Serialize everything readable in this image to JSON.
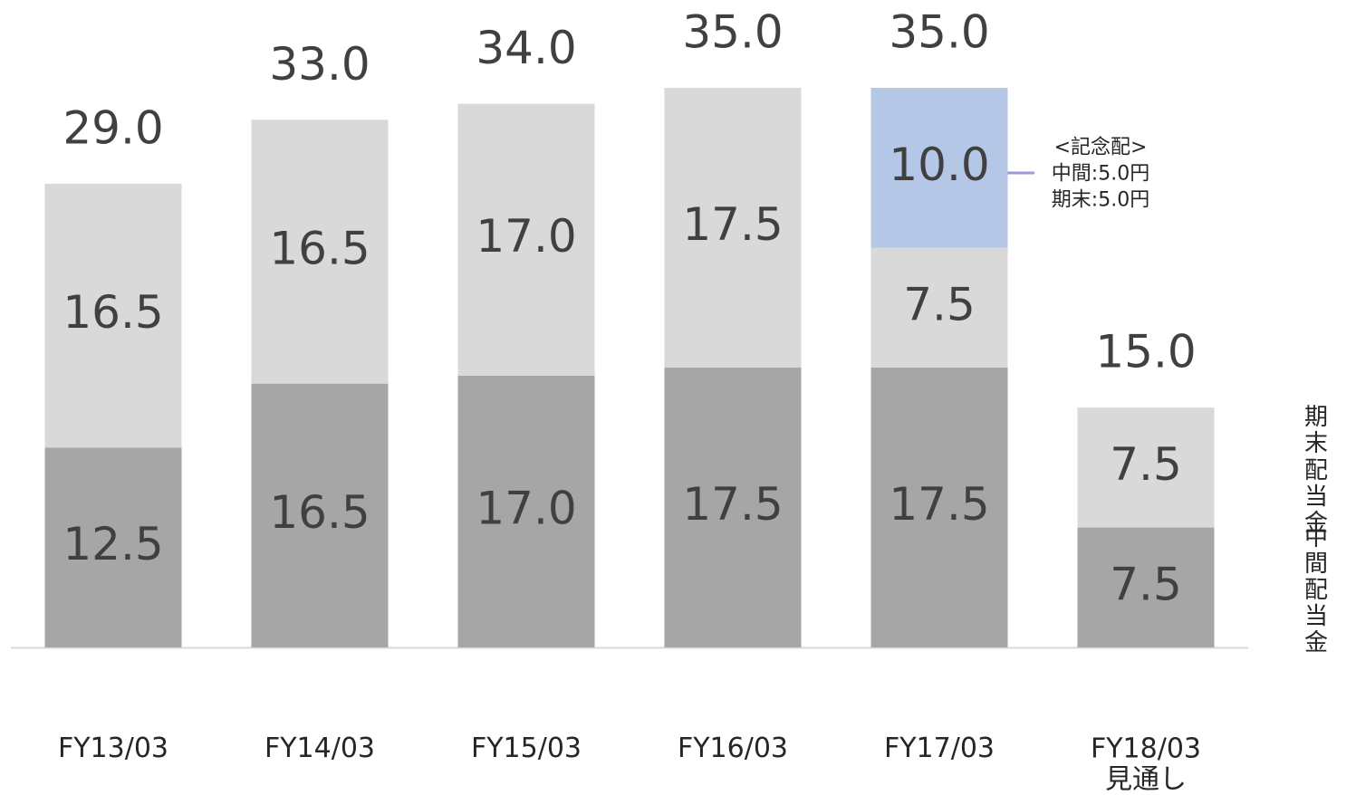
{
  "chart_data": {
    "type": "stacked_bar",
    "categories": [
      "FY13/03",
      "FY14/03",
      "FY15/03",
      "FY16/03",
      "FY17/03",
      "FY18/03\n見通し"
    ],
    "series": [
      {
        "name": "中間\n配当金",
        "color": "#a6a6a6",
        "values": [
          12.5,
          16.5,
          17.0,
          17.5,
          17.5,
          7.5
        ],
        "value_labels": [
          "12.5",
          "16.5",
          "17.0",
          "17.5",
          "17.5",
          "7.5"
        ]
      },
      {
        "name": "期末\n配当金",
        "color": "#d9d9d9",
        "values": [
          16.5,
          16.5,
          17.0,
          17.5,
          7.5,
          7.5
        ],
        "value_labels": [
          "16.5",
          "16.5",
          "17.0",
          "17.5",
          "7.5",
          "7.5"
        ]
      },
      {
        "name": "記念配",
        "color": "#b4c7e7",
        "values": [
          null,
          null,
          null,
          null,
          10.0,
          null
        ],
        "value_labels": [
          null,
          null,
          null,
          null,
          "10.0",
          null
        ]
      }
    ],
    "totals": {
      "values": [
        29.0,
        33.0,
        34.0,
        35.0,
        35.0,
        15.0
      ],
      "value_labels": [
        "29.0",
        "33.0",
        "34.0",
        "35.0",
        "35.0",
        "15.0"
      ]
    },
    "annotation": "<記念配>\n中間:5.0円\n期末:5.0円",
    "ylim": [
      0,
      35
    ],
    "legend": "right"
  }
}
